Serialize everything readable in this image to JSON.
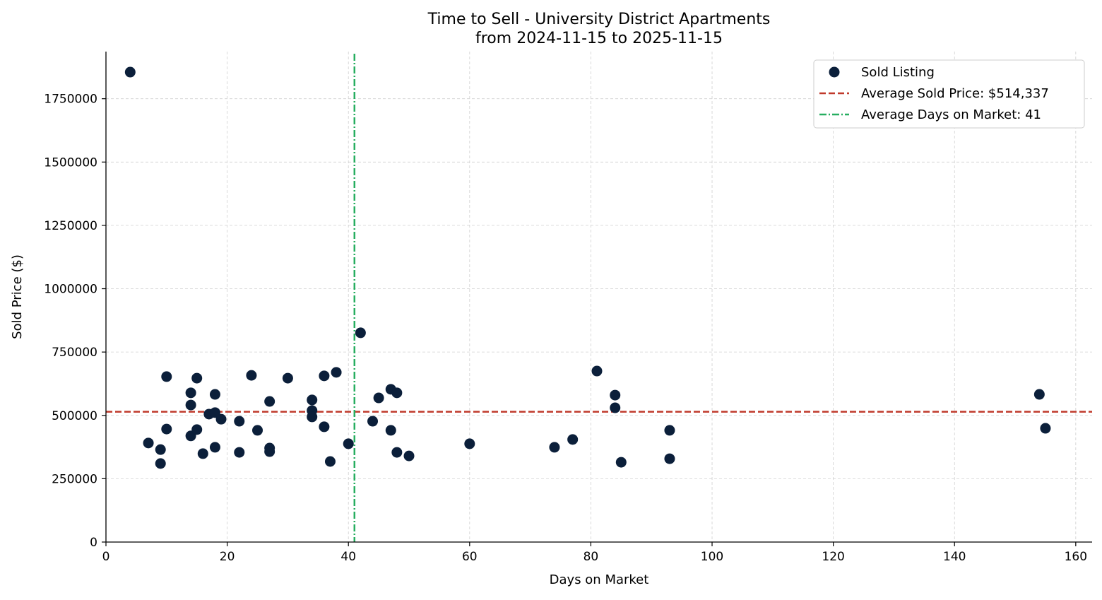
{
  "chart_data": {
    "type": "scatter",
    "title": "Time to Sell - University District Apartments",
    "subtitle": "from 2024-11-15 to 2025-11-15",
    "xlabel": "Days on Market",
    "ylabel": "Sold Price ($)",
    "xlim": [
      0,
      162.7
    ],
    "ylim": [
      0,
      1936000
    ],
    "xticks": [
      0,
      20,
      40,
      60,
      80,
      100,
      120,
      140,
      160
    ],
    "yticks": [
      0,
      250000,
      500000,
      750000,
      1000000,
      1250000,
      1500000,
      1750000
    ],
    "grid": true,
    "legend_position": "top-right",
    "colors": {
      "points": "#0b1f3a",
      "avg_price": "#c0392b",
      "avg_days": "#27ae60",
      "grid": "#d0d0d0"
    },
    "series": [
      {
        "name": "Sold Listing",
        "points": [
          [
            4,
            1855000
          ],
          [
            7,
            391000
          ],
          [
            9,
            365000
          ],
          [
            9,
            310000
          ],
          [
            10,
            653000
          ],
          [
            10,
            446000
          ],
          [
            14,
            589000
          ],
          [
            14,
            541000
          ],
          [
            14,
            419000
          ],
          [
            15,
            647000
          ],
          [
            15,
            444000
          ],
          [
            16,
            349000
          ],
          [
            17,
            505000
          ],
          [
            18,
            583000
          ],
          [
            18,
            511000
          ],
          [
            18,
            374000
          ],
          [
            19,
            485000
          ],
          [
            22,
            477000
          ],
          [
            22,
            354000
          ],
          [
            24,
            658000
          ],
          [
            25,
            441000
          ],
          [
            27,
            555000
          ],
          [
            27,
            371000
          ],
          [
            27,
            357000
          ],
          [
            30,
            647000
          ],
          [
            34,
            561000
          ],
          [
            34,
            519000
          ],
          [
            34,
            494000
          ],
          [
            36,
            656000
          ],
          [
            36,
            455000
          ],
          [
            37,
            318000
          ],
          [
            38,
            670000
          ],
          [
            40,
            388000
          ],
          [
            42,
            826000
          ],
          [
            44,
            477000
          ],
          [
            45,
            569000
          ],
          [
            47,
            603000
          ],
          [
            47,
            441000
          ],
          [
            48,
            589000
          ],
          [
            48,
            354000
          ],
          [
            50,
            340000
          ],
          [
            60,
            388000
          ],
          [
            74,
            374000
          ],
          [
            77,
            405000
          ],
          [
            81,
            675000
          ],
          [
            84,
            580000
          ],
          [
            84,
            530000
          ],
          [
            85,
            315000
          ],
          [
            93,
            441000
          ],
          [
            93,
            329000
          ],
          [
            154,
            583000
          ],
          [
            155,
            449000
          ]
        ]
      }
    ],
    "reference_lines": {
      "avg_price": {
        "label": "Average Sold Price: $514,337",
        "value": 514337
      },
      "avg_days": {
        "label": "Average Days on Market: 41",
        "value": 41
      }
    }
  }
}
